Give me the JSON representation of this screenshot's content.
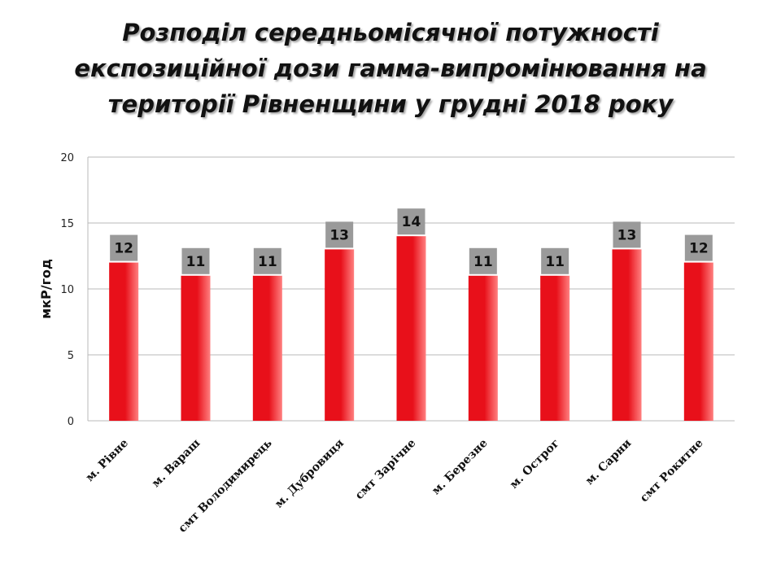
{
  "title_lines": [
    "Розподіл середньомісячної потужності",
    "експозиційної дози гамма-випромінювання на",
    "території Рівненщини у грудні 2018 року"
  ],
  "colors": {
    "bar": "#e8101a",
    "bar_shade": "#ff8080",
    "label_box": "#9a9a9a",
    "grid": "#b8b8b8"
  },
  "chart_data": {
    "type": "bar",
    "categories": [
      "м. Рівне",
      "м. Вараш",
      "смт Володимирець",
      "м. Дубровиця",
      "смт Зарічне",
      "м. Березне",
      "м. Острог",
      "м. Сарни",
      "смт Рокитне"
    ],
    "values": [
      12,
      11,
      11,
      13,
      14,
      11,
      11,
      13,
      12
    ],
    "ylabel": "мкР/год",
    "xlabel": "",
    "ylim": [
      0,
      20
    ],
    "yticks": [
      0,
      5,
      10,
      15,
      20
    ],
    "grid": true,
    "data_labels": true
  }
}
